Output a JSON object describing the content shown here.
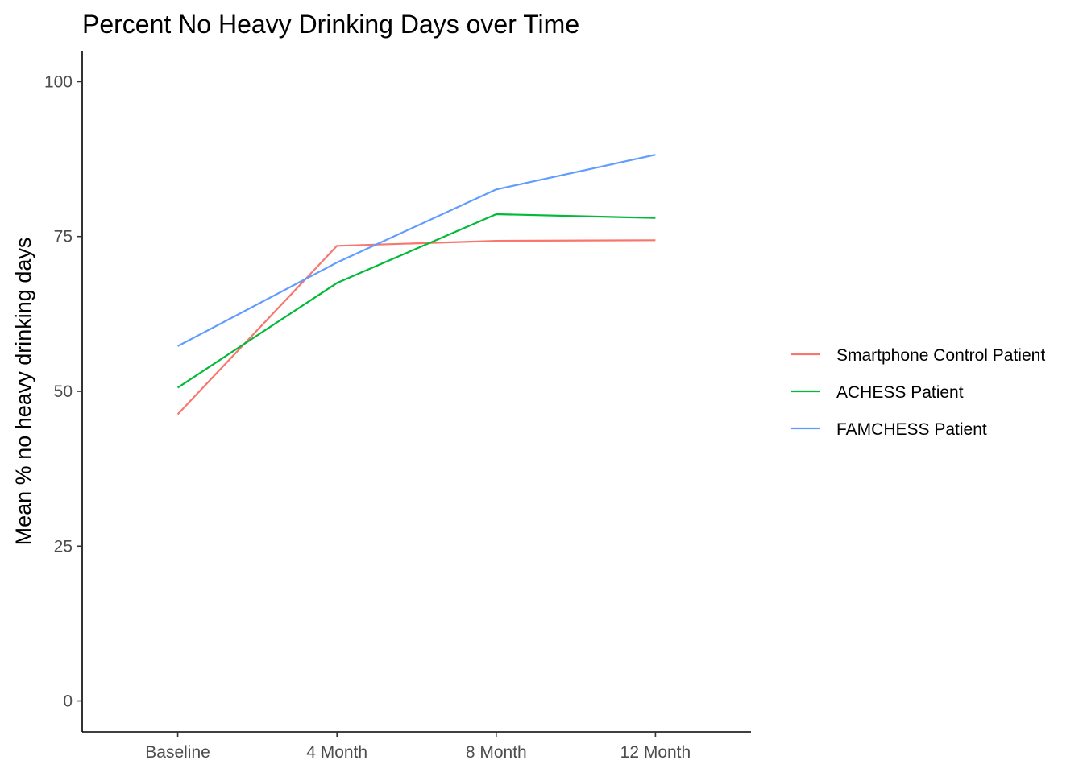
{
  "chart_data": {
    "type": "line",
    "title": "Percent No Heavy Drinking Days over Time",
    "xlabel": "",
    "ylabel": "Mean % no heavy drinking days",
    "categories": [
      "Baseline",
      "4 Month",
      "8 Month",
      "12 Month"
    ],
    "ylim": [
      -5,
      105
    ],
    "yticks": [
      0,
      25,
      50,
      75,
      100
    ],
    "grid": false,
    "legend_position": "right",
    "series": [
      {
        "name": "Smartphone Control Patient",
        "color": "#F8766D",
        "values": [
          46.3,
          73.5,
          74.3,
          74.4
        ]
      },
      {
        "name": "ACHESS Patient",
        "color": "#00BA38",
        "values": [
          50.6,
          67.5,
          78.6,
          78.0
        ]
      },
      {
        "name": "FAMCHESS Patient",
        "color": "#619CFF",
        "values": [
          57.3,
          70.8,
          82.6,
          88.2
        ]
      }
    ]
  }
}
